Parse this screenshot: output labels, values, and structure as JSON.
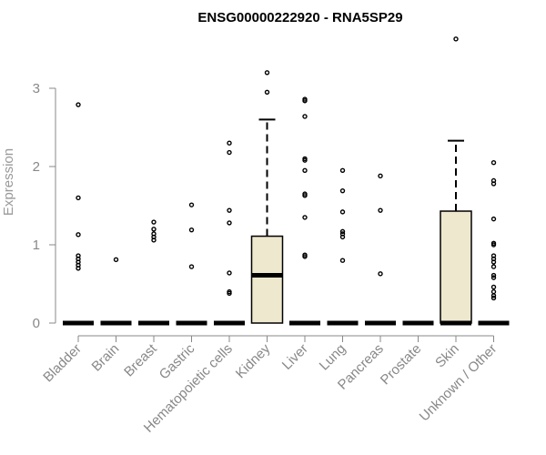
{
  "chart_data": {
    "type": "box",
    "title": "ENSG00000222920 - RNA5SP29",
    "xlabel": "",
    "ylabel": "Expression",
    "ylim": [
      0,
      3.6
    ],
    "yticks": [
      0,
      1,
      2,
      3
    ],
    "grid": false,
    "box_fill": "#ede8ce",
    "categories": [
      "Bladder",
      "Brain",
      "Breast",
      "Gastric",
      "Hematopoietic cells",
      "Kidney",
      "Liver",
      "Lung",
      "Pancreas",
      "Prostate",
      "Skin",
      "Unknown / Other"
    ],
    "boxes": [
      {
        "category": "Bladder",
        "q1": 0,
        "median": 0,
        "q3": 0,
        "whisker_low": 0,
        "whisker_high": 0,
        "outliers": [
          2.79,
          1.6,
          1.13,
          0.86,
          0.82,
          0.78,
          0.74,
          0.7
        ]
      },
      {
        "category": "Brain",
        "q1": 0,
        "median": 0,
        "q3": 0,
        "whisker_low": 0,
        "whisker_high": 0,
        "outliers": [
          0.81
        ]
      },
      {
        "category": "Breast",
        "q1": 0,
        "median": 0,
        "q3": 0,
        "whisker_low": 0,
        "whisker_high": 0,
        "outliers": [
          1.29,
          1.2,
          1.14,
          1.1,
          1.06
        ]
      },
      {
        "category": "Gastric",
        "q1": 0,
        "median": 0,
        "q3": 0,
        "whisker_low": 0,
        "whisker_high": 0,
        "outliers": [
          1.51,
          1.19,
          0.72
        ]
      },
      {
        "category": "Hematopoietic cells",
        "q1": 0,
        "median": 0,
        "q3": 0,
        "whisker_low": 0,
        "whisker_high": 0,
        "outliers": [
          2.3,
          2.18,
          1.44,
          1.28,
          0.64,
          0.4,
          0.38
        ]
      },
      {
        "category": "Kidney",
        "q1": 0,
        "median": 0.61,
        "q3": 1.11,
        "whisker_low": 0,
        "whisker_high": 2.6,
        "outliers": [
          3.2,
          2.95
        ]
      },
      {
        "category": "Liver",
        "q1": 0,
        "median": 0,
        "q3": 0,
        "whisker_low": 0,
        "whisker_high": 0,
        "outliers": [
          2.86,
          2.84,
          2.64,
          2.1,
          2.08,
          1.95,
          1.65,
          1.63,
          1.35,
          0.87,
          0.85
        ]
      },
      {
        "category": "Lung",
        "q1": 0,
        "median": 0,
        "q3": 0,
        "whisker_low": 0,
        "whisker_high": 0,
        "outliers": [
          1.95,
          1.69,
          1.42,
          1.17,
          1.14,
          1.1,
          0.8
        ]
      },
      {
        "category": "Pancreas",
        "q1": 0,
        "median": 0,
        "q3": 0,
        "whisker_low": 0,
        "whisker_high": 0,
        "outliers": [
          1.88,
          1.44,
          0.63
        ]
      },
      {
        "category": "Prostate",
        "q1": 0,
        "median": 0,
        "q3": 0,
        "whisker_low": 0,
        "whisker_high": 0,
        "outliers": []
      },
      {
        "category": "Skin",
        "q1": 0,
        "median": 0,
        "q3": 1.43,
        "whisker_low": 0,
        "whisker_high": 2.33,
        "outliers": [
          3.63
        ]
      },
      {
        "category": "Unknown / Other",
        "q1": 0,
        "median": 0,
        "q3": 0,
        "whisker_low": 0,
        "whisker_high": 0,
        "outliers": [
          2.05,
          1.82,
          1.78,
          1.33,
          1.02,
          1.0,
          0.86,
          0.82,
          0.78,
          0.72,
          0.61,
          0.58,
          0.46,
          0.4,
          0.35,
          0.32
        ]
      }
    ]
  }
}
